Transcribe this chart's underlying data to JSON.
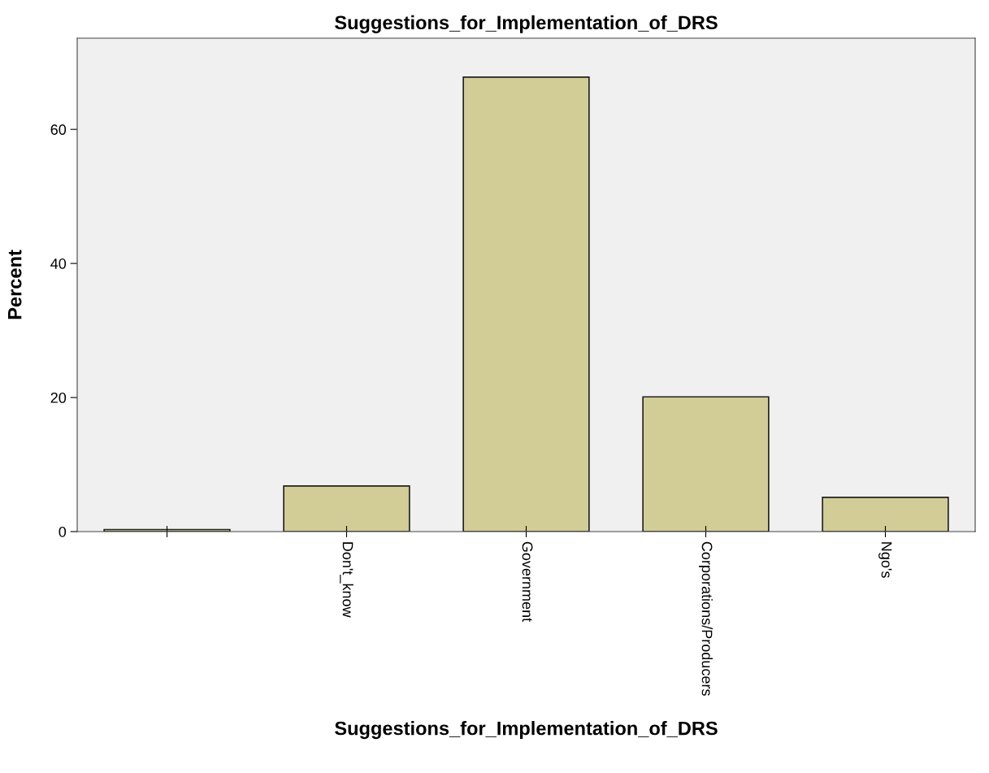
{
  "chart_data": {
    "type": "bar",
    "title": "Suggestions_for_Implementation_of_DRS",
    "xlabel": "Suggestions_for_Implementation_of_DRS",
    "ylabel": "Percent",
    "categories": [
      null,
      "Don't_know",
      "Government",
      "Corporations/Producers",
      "Ngo's"
    ],
    "values": [
      0.3,
      6.8,
      67.8,
      20.1,
      5.1
    ],
    "color": "#d2cd96",
    "ylim": [
      0,
      73.6
    ],
    "yticks": [
      0,
      20,
      40,
      60
    ],
    "grid": false,
    "legend": false
  }
}
